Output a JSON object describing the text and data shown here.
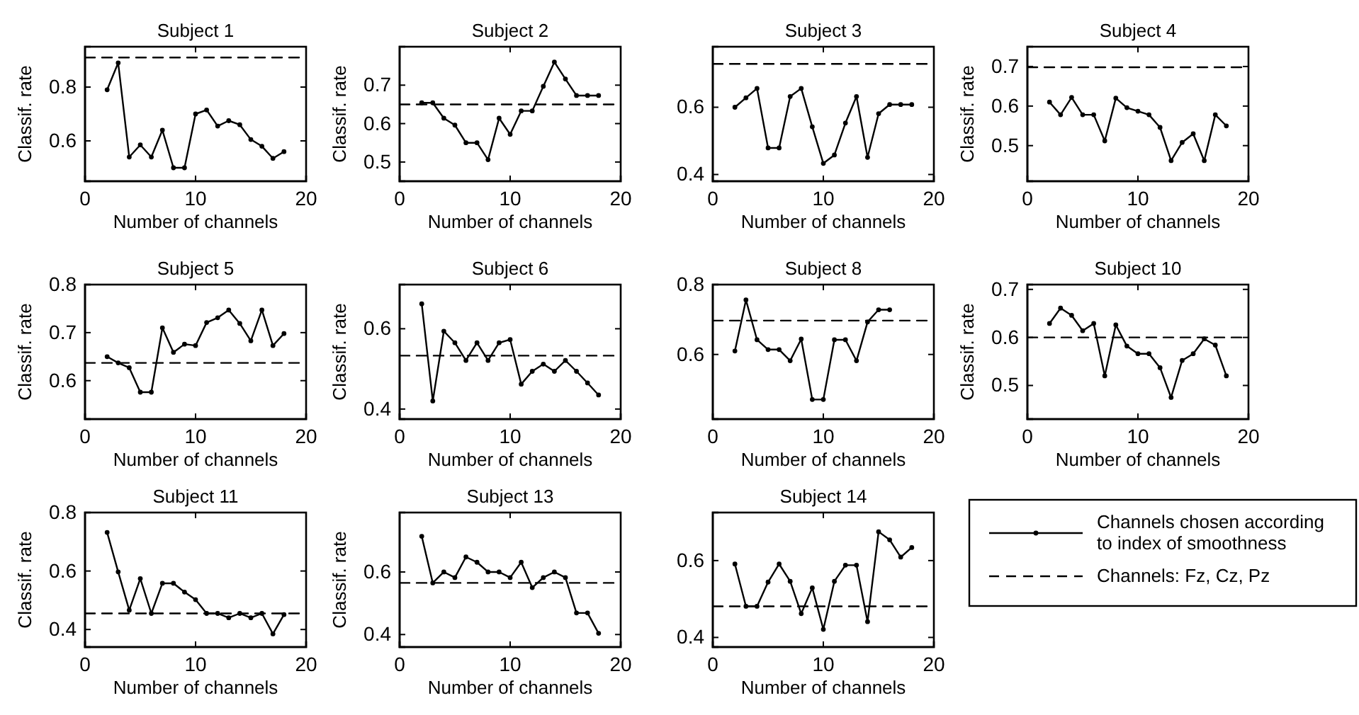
{
  "chart_data": [
    {
      "type": "line",
      "title": "Subject 1",
      "xlabel": "Number of channels",
      "ylabel": "Classif. rate",
      "xlim": [
        0,
        20
      ],
      "xticks": [
        0,
        10,
        20
      ],
      "ylim": [
        0.45,
        0.95
      ],
      "yticks": [
        0.6,
        0.8
      ],
      "series": [
        {
          "color": "#000000",
          "marker": "circle",
          "line_style": "solid",
          "x": [
            2,
            3,
            4,
            5,
            6,
            7,
            8,
            9,
            10,
            11,
            12,
            13,
            14,
            15,
            16,
            17,
            18
          ],
          "values": [
            0.79,
            0.89,
            0.54,
            0.585,
            0.54,
            0.64,
            0.5,
            0.5,
            0.7,
            0.715,
            0.655,
            0.675,
            0.66,
            0.605,
            0.58,
            0.535,
            0.56
          ]
        },
        {
          "color": "#000000",
          "marker": "none",
          "line_style": "dashed",
          "x": [
            0,
            20
          ],
          "values": [
            0.91,
            0.91
          ]
        }
      ]
    },
    {
      "type": "line",
      "title": "Subject 2",
      "xlabel": "Number of channels",
      "ylabel": "Classif. rate",
      "xlim": [
        0,
        20
      ],
      "xticks": [
        0,
        10,
        20
      ],
      "ylim": [
        0.45,
        0.8
      ],
      "yticks": [
        0.5,
        0.6,
        0.7
      ],
      "series": [
        {
          "color": "#000000",
          "marker": "circle",
          "line_style": "solid",
          "x": [
            2,
            3,
            4,
            5,
            6,
            7,
            8,
            9,
            10,
            11,
            12,
            13,
            14,
            15,
            16,
            17,
            18
          ],
          "values": [
            0.654,
            0.654,
            0.614,
            0.596,
            0.55,
            0.55,
            0.506,
            0.614,
            0.572,
            0.633,
            0.633,
            0.697,
            0.76,
            0.716,
            0.673,
            0.673,
            0.673
          ]
        },
        {
          "color": "#000000",
          "marker": "none",
          "line_style": "dashed",
          "x": [
            0,
            20
          ],
          "values": [
            0.65,
            0.65
          ]
        }
      ]
    },
    {
      "type": "line",
      "title": "Subject 3",
      "xlabel": "Number of channels",
      "xlim": [
        0,
        20
      ],
      "xticks": [
        0,
        10,
        20
      ],
      "ylim": [
        0.38,
        0.78
      ],
      "yticks": [
        0.4,
        0.6
      ],
      "series": [
        {
          "color": "#000000",
          "marker": "circle",
          "line_style": "solid",
          "x": [
            2,
            3,
            4,
            5,
            6,
            7,
            8,
            9,
            10,
            11,
            12,
            13,
            14,
            15,
            16,
            17,
            18
          ],
          "values": [
            0.6,
            0.628,
            0.656,
            0.479,
            0.479,
            0.632,
            0.656,
            0.542,
            0.433,
            0.458,
            0.553,
            0.632,
            0.451,
            0.581,
            0.608,
            0.608,
            0.608
          ]
        },
        {
          "color": "#000000",
          "marker": "none",
          "line_style": "dashed",
          "x": [
            0,
            20
          ],
          "values": [
            0.729,
            0.729
          ]
        }
      ]
    },
    {
      "type": "line",
      "title": "Subject 4",
      "xlabel": "Number of channels",
      "ylabel": "Classif. rate",
      "xlim": [
        0,
        20
      ],
      "xticks": [
        0,
        10,
        20
      ],
      "ylim": [
        0.41,
        0.75
      ],
      "yticks": [
        0.5,
        0.6,
        0.7
      ],
      "series": [
        {
          "color": "#000000",
          "marker": "circle",
          "line_style": "solid",
          "x": [
            2,
            3,
            4,
            5,
            6,
            7,
            8,
            9,
            10,
            11,
            12,
            13,
            14,
            15,
            16,
            17,
            18
          ],
          "values": [
            0.61,
            0.578,
            0.622,
            0.578,
            0.578,
            0.512,
            0.62,
            0.596,
            0.587,
            0.578,
            0.546,
            0.462,
            0.508,
            0.53,
            0.462,
            0.578,
            0.55
          ]
        },
        {
          "color": "#000000",
          "marker": "none",
          "line_style": "dashed",
          "x": [
            0,
            20
          ],
          "values": [
            0.698,
            0.698
          ]
        }
      ]
    },
    {
      "type": "line",
      "title": "Subject 5",
      "xlabel": "Number of channels",
      "ylabel": "Classif. rate",
      "xlim": [
        0,
        20
      ],
      "xticks": [
        0,
        10,
        20
      ],
      "ylim": [
        0.52,
        0.8
      ],
      "yticks": [
        0.6,
        0.7,
        0.8
      ],
      "series": [
        {
          "color": "#000000",
          "marker": "circle",
          "line_style": "solid",
          "x": [
            2,
            3,
            4,
            5,
            6,
            7,
            8,
            9,
            10,
            11,
            12,
            13,
            14,
            15,
            16,
            17,
            18
          ],
          "values": [
            0.65,
            0.637,
            0.627,
            0.576,
            0.576,
            0.71,
            0.659,
            0.676,
            0.673,
            0.721,
            0.731,
            0.747,
            0.719,
            0.683,
            0.747,
            0.673,
            0.698
          ]
        },
        {
          "color": "#000000",
          "marker": "none",
          "line_style": "dashed",
          "x": [
            0,
            20
          ],
          "values": [
            0.637,
            0.637
          ]
        }
      ]
    },
    {
      "type": "line",
      "title": "Subject 6",
      "xlabel": "Number of channels",
      "ylabel": "Classif. rate",
      "xlim": [
        0,
        20
      ],
      "xticks": [
        0,
        10,
        20
      ],
      "ylim": [
        0.375,
        0.71
      ],
      "yticks": [
        0.4,
        0.6
      ],
      "series": [
        {
          "color": "#000000",
          "marker": "circle",
          "line_style": "solid",
          "x": [
            2,
            3,
            4,
            5,
            6,
            7,
            8,
            9,
            10,
            11,
            12,
            13,
            14,
            15,
            16,
            17,
            18
          ],
          "values": [
            0.662,
            0.42,
            0.594,
            0.565,
            0.521,
            0.565,
            0.521,
            0.565,
            0.573,
            0.462,
            0.494,
            0.512,
            0.494,
            0.521,
            0.494,
            0.465,
            0.435
          ]
        },
        {
          "color": "#000000",
          "marker": "none",
          "line_style": "dashed",
          "x": [
            0,
            20
          ],
          "values": [
            0.533,
            0.533
          ]
        }
      ]
    },
    {
      "type": "line",
      "title": "Subject 8",
      "xlabel": "Number of channels",
      "xlim": [
        0,
        20
      ],
      "xticks": [
        0,
        10,
        20
      ],
      "ylim": [
        0.415,
        0.8
      ],
      "yticks": [
        0.6,
        0.8
      ],
      "series": [
        {
          "color": "#000000",
          "marker": "circle",
          "line_style": "solid",
          "x": [
            2,
            3,
            4,
            5,
            6,
            7,
            8,
            9,
            10,
            11,
            12,
            13,
            14,
            15,
            16
          ],
          "values": [
            0.61,
            0.756,
            0.642,
            0.614,
            0.614,
            0.582,
            0.644,
            0.471,
            0.471,
            0.642,
            0.642,
            0.582,
            0.693,
            0.728,
            0.728
          ]
        },
        {
          "color": "#000000",
          "marker": "none",
          "line_style": "dashed",
          "x": [
            0,
            20
          ],
          "values": [
            0.697,
            0.697
          ]
        }
      ]
    },
    {
      "type": "line",
      "title": "Subject 10",
      "xlabel": "Number of channels",
      "ylabel": "Classif. rate",
      "xlim": [
        0,
        20
      ],
      "xticks": [
        0,
        10,
        20
      ],
      "ylim": [
        0.43,
        0.71
      ],
      "yticks": [
        0.5,
        0.6,
        0.7
      ],
      "series": [
        {
          "color": "#000000",
          "marker": "circle",
          "line_style": "solid",
          "x": [
            2,
            3,
            4,
            5,
            6,
            7,
            8,
            9,
            10,
            11,
            12,
            13,
            14,
            15,
            16,
            17,
            18
          ],
          "values": [
            0.629,
            0.661,
            0.646,
            0.614,
            0.629,
            0.52,
            0.626,
            0.582,
            0.566,
            0.566,
            0.537,
            0.475,
            0.552,
            0.566,
            0.597,
            0.584,
            0.52
          ]
        },
        {
          "color": "#000000",
          "marker": "none",
          "line_style": "dashed",
          "x": [
            0,
            20
          ],
          "values": [
            0.6,
            0.6
          ]
        }
      ]
    },
    {
      "type": "line",
      "title": "Subject 11",
      "xlabel": "Number of channels",
      "ylabel": "Classif. rate",
      "xlim": [
        0,
        20
      ],
      "xticks": [
        0,
        10,
        20
      ],
      "ylim": [
        0.34,
        0.8
      ],
      "yticks": [
        0.4,
        0.6,
        0.8
      ],
      "series": [
        {
          "color": "#000000",
          "marker": "circle",
          "line_style": "solid",
          "x": [
            2,
            3,
            4,
            5,
            6,
            7,
            8,
            9,
            10,
            11,
            12,
            13,
            14,
            15,
            16,
            17,
            18
          ],
          "values": [
            0.732,
            0.597,
            0.466,
            0.574,
            0.455,
            0.558,
            0.558,
            0.528,
            0.502,
            0.455,
            0.455,
            0.44,
            0.455,
            0.44,
            0.455,
            0.385,
            0.451
          ]
        },
        {
          "color": "#000000",
          "marker": "none",
          "line_style": "dashed",
          "x": [
            0,
            20
          ],
          "values": [
            0.455,
            0.455
          ]
        }
      ]
    },
    {
      "type": "line",
      "title": "Subject 13",
      "xlabel": "Number of channels",
      "ylabel": "Classif. rate",
      "xlim": [
        0,
        20
      ],
      "xticks": [
        0,
        10,
        20
      ],
      "ylim": [
        0.36,
        0.79
      ],
      "yticks": [
        0.4,
        0.6
      ],
      "series": [
        {
          "color": "#000000",
          "marker": "circle",
          "line_style": "solid",
          "x": [
            2,
            3,
            4,
            5,
            6,
            7,
            8,
            9,
            10,
            11,
            12,
            13,
            14,
            15,
            16,
            17,
            18
          ],
          "values": [
            0.714,
            0.565,
            0.6,
            0.582,
            0.648,
            0.631,
            0.6,
            0.6,
            0.582,
            0.631,
            0.55,
            0.582,
            0.6,
            0.582,
            0.469,
            0.469,
            0.404
          ]
        },
        {
          "color": "#000000",
          "marker": "none",
          "line_style": "dashed",
          "x": [
            0,
            20
          ],
          "values": [
            0.565,
            0.565
          ]
        }
      ]
    },
    {
      "type": "line",
      "title": "Subject 14",
      "xlabel": "Number of channels",
      "xlim": [
        0,
        20
      ],
      "xticks": [
        0,
        10,
        20
      ],
      "ylim": [
        0.375,
        0.725
      ],
      "yticks": [
        0.4,
        0.6
      ],
      "legend": "right",
      "series": [
        {
          "name": "Channels chosen according to index of smoothness",
          "color": "#000000",
          "marker": "circle",
          "line_style": "solid",
          "x": [
            2,
            3,
            4,
            5,
            6,
            7,
            8,
            9,
            10,
            11,
            12,
            13,
            14,
            15,
            16,
            17,
            18
          ],
          "values": [
            0.591,
            0.481,
            0.481,
            0.544,
            0.591,
            0.546,
            0.462,
            0.529,
            0.421,
            0.546,
            0.588,
            0.588,
            0.441,
            0.675,
            0.654,
            0.609,
            0.634
          ]
        },
        {
          "name": "Channels: Fz, Cz, Pz",
          "color": "#000000",
          "marker": "none",
          "line_style": "dashed",
          "x": [
            0,
            20
          ],
          "values": [
            0.481,
            0.481
          ]
        }
      ]
    }
  ]
}
